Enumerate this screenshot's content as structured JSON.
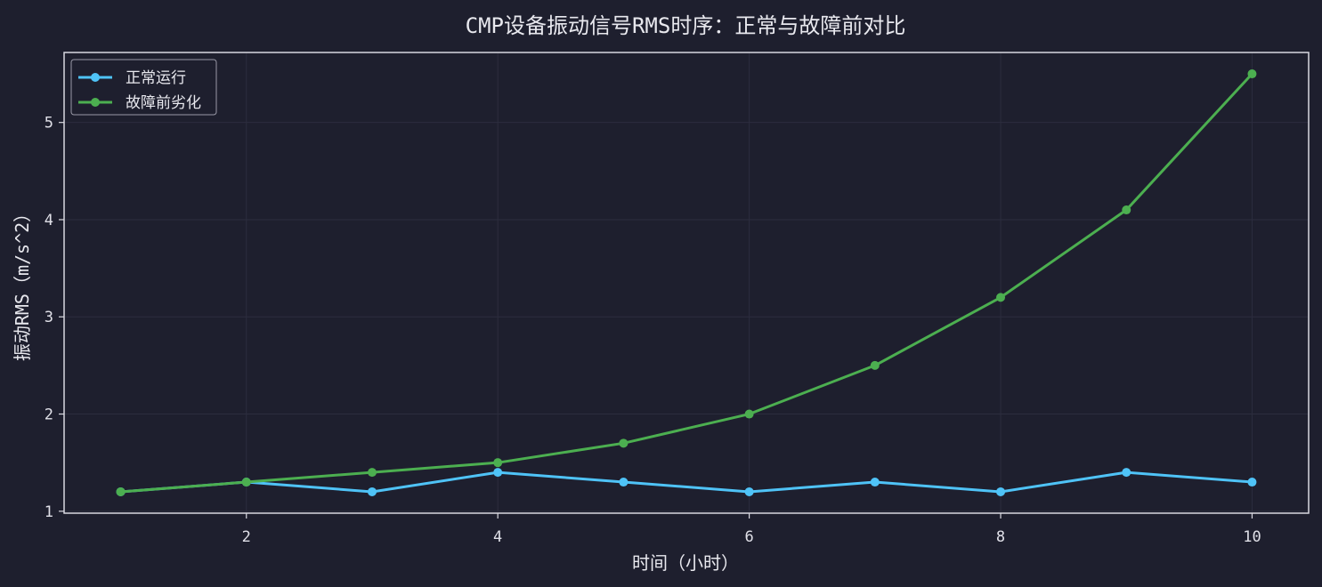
{
  "chart_data": {
    "type": "line",
    "title": "CMP设备振动信号RMS时序：正常与故障前对比",
    "xlabel": "时间（小时）",
    "ylabel": "振动RMS（m/s^2）",
    "x": [
      1,
      2,
      3,
      4,
      5,
      6,
      7,
      8,
      9,
      10
    ],
    "xlim": [
      0.55,
      10.45
    ],
    "ylim": [
      0.98,
      5.72
    ],
    "xticks": [
      2,
      4,
      6,
      8,
      10
    ],
    "yticks": [
      1,
      2,
      3,
      4,
      5
    ],
    "grid": true,
    "legend_position": "top-left",
    "series": [
      {
        "name": "正常运行",
        "color": "#4fc3f7",
        "values": [
          1.2,
          1.3,
          1.2,
          1.4,
          1.3,
          1.2,
          1.3,
          1.2,
          1.4,
          1.3
        ]
      },
      {
        "name": "故障前劣化",
        "color": "#4caf50",
        "values": [
          1.2,
          1.3,
          1.4,
          1.5,
          1.7,
          2.0,
          2.5,
          3.2,
          4.1,
          5.5
        ]
      }
    ],
    "colors": {
      "background": "#1e1f2e",
      "axes": "#d8d8e0",
      "grid": "#2c2d3e",
      "text": "#e8e8ee"
    }
  }
}
